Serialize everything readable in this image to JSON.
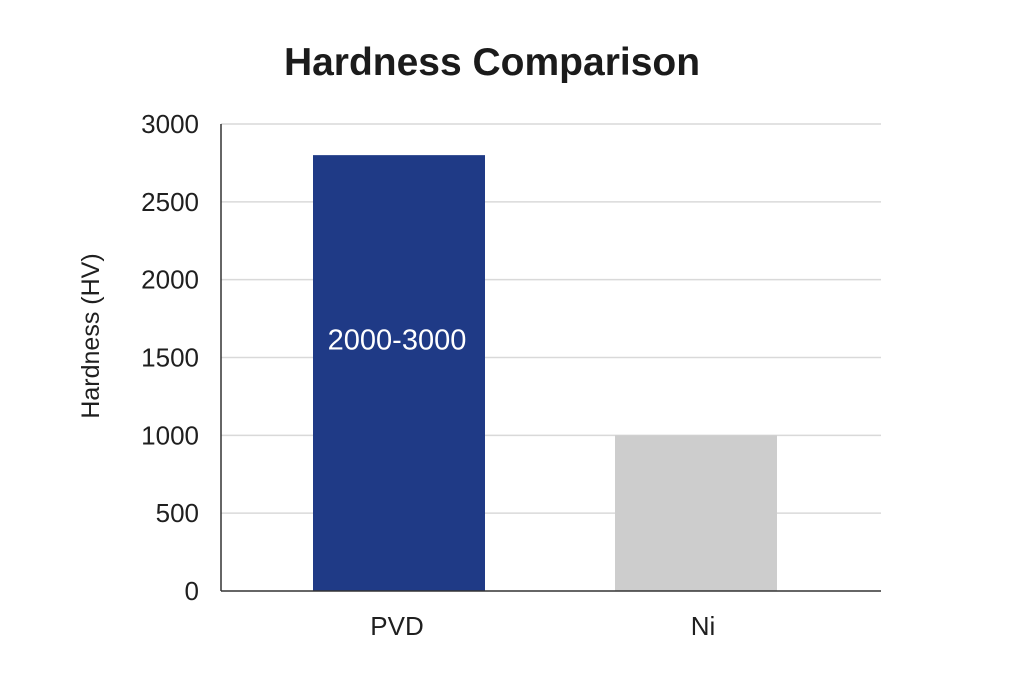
{
  "chart_data": {
    "type": "bar",
    "title": "Hardness Comparison",
    "ylabel": "Hardness (HV)",
    "xlabel": "",
    "categories": [
      "PVD",
      "Ni"
    ],
    "values": [
      2800,
      1000
    ],
    "bar_labels": [
      "2000-3000",
      ""
    ],
    "colors": [
      "#1f3a86",
      "#cdcdcd"
    ],
    "ylim": [
      0,
      3000
    ],
    "yticks": [
      0,
      500,
      1000,
      1500,
      2000,
      2500,
      3000
    ],
    "ytick_labels": [
      "0",
      "500",
      "1000",
      "1500",
      "2000",
      "2500",
      "3000"
    ],
    "grid": true,
    "legend": "none"
  }
}
